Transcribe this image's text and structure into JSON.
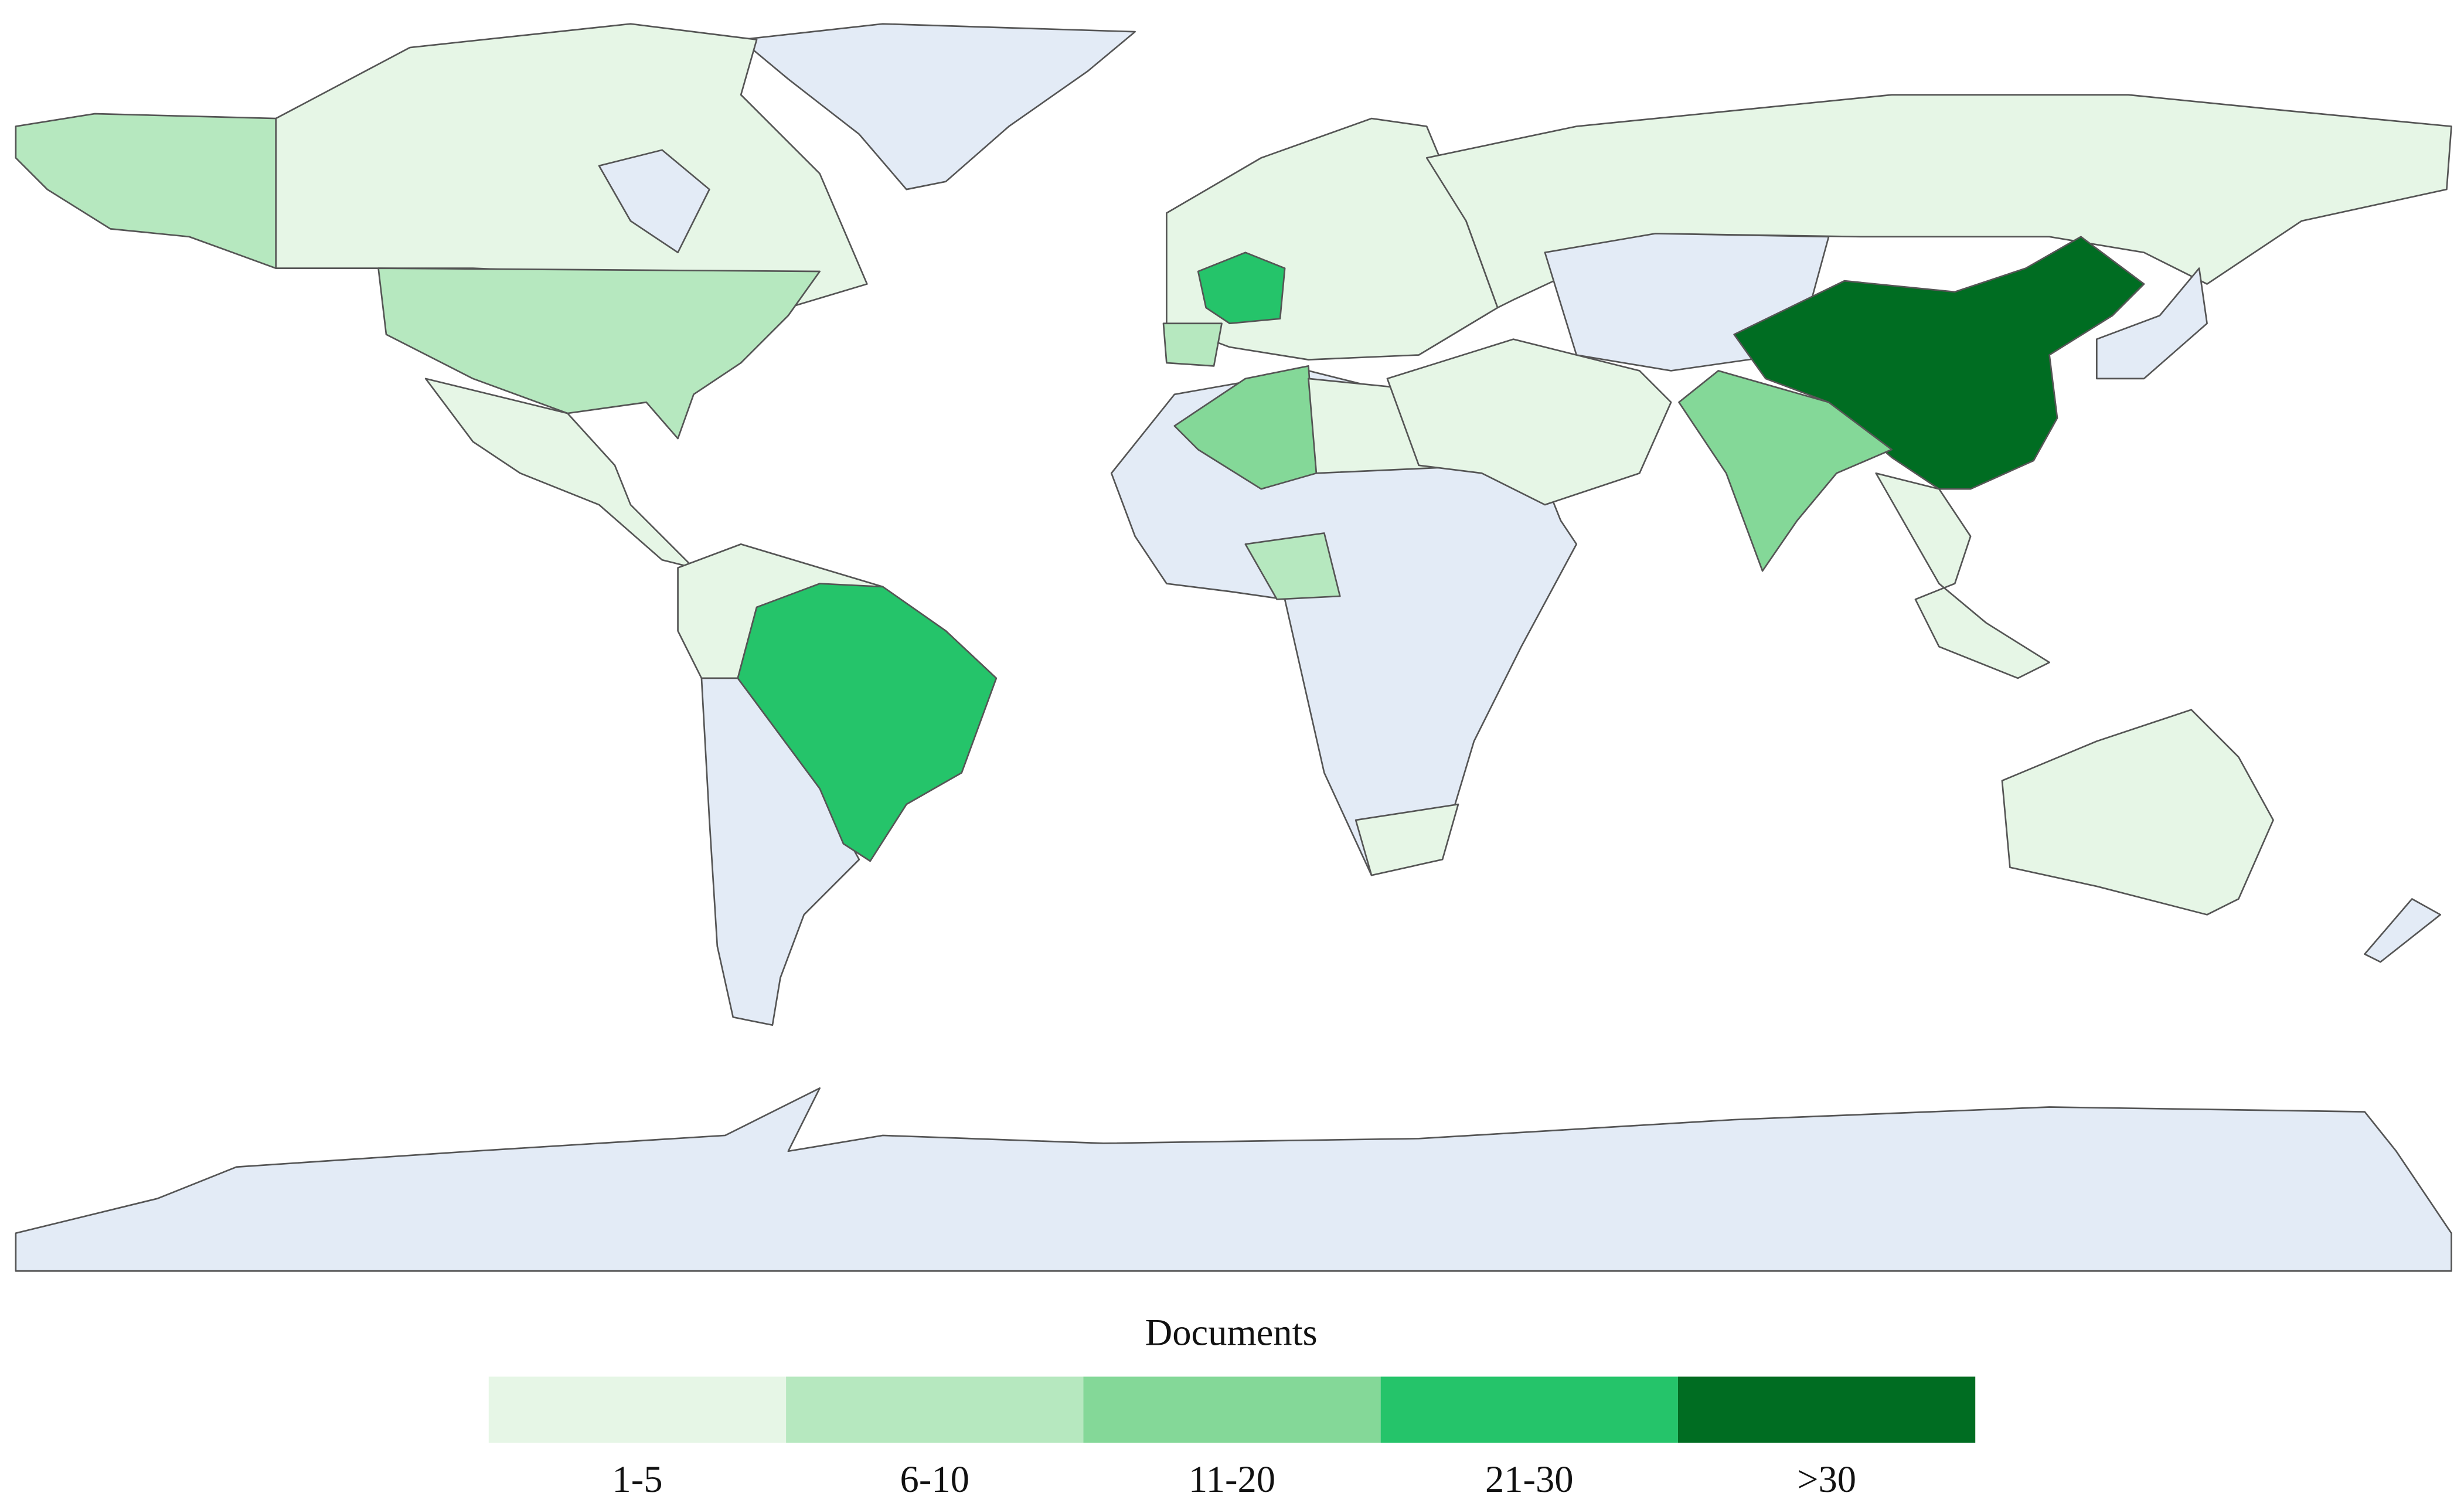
{
  "map": {
    "no_data_color": "#e3ebf6",
    "legend": {
      "title": "Documents",
      "classes": [
        {
          "label": "1-5",
          "color": "#e6f6e6"
        },
        {
          "label": "6-10",
          "color": "#b6e8bf"
        },
        {
          "label": "11-20",
          "color": "#84d898"
        },
        {
          "label": "21-30",
          "color": "#25c46a"
        },
        {
          "label": ">30",
          "color": "#006d22"
        }
      ]
    }
  }
}
